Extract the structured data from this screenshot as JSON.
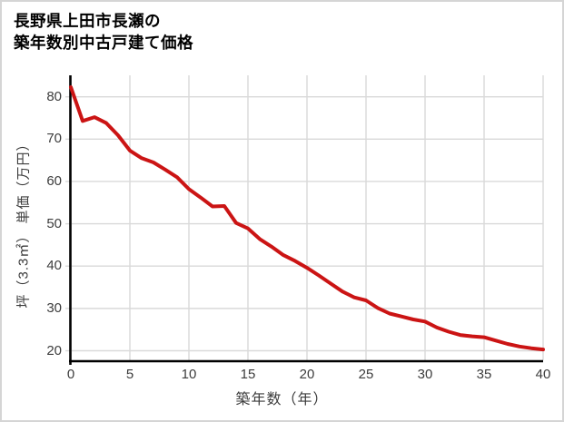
{
  "title": {
    "line1": "長野県上田市長瀬の",
    "line2": "築年数別中古戸建て価格"
  },
  "colors": {
    "line": "#cb1414",
    "grid": "#d9d9d9",
    "axis": "#000000",
    "text": "#3c3c3c",
    "border": "#d5d5d5",
    "background": "#ffffff"
  },
  "chart_data": {
    "type": "line",
    "title": "長野県上田市長瀬の 築年数別中古戸建て価格",
    "xlabel": "築年数（年）",
    "ylabel": "坪（3.3㎡） 単価（万円）",
    "x": [
      0,
      1,
      2,
      3,
      4,
      5,
      6,
      7,
      8,
      9,
      10,
      11,
      12,
      13,
      14,
      15,
      16,
      17,
      18,
      19,
      20,
      21,
      22,
      23,
      24,
      25,
      26,
      27,
      28,
      29,
      30,
      31,
      32,
      33,
      34,
      35,
      36,
      37,
      38,
      39,
      40
    ],
    "values": [
      82.3,
      74.3,
      75.2,
      73.8,
      70.9,
      67.3,
      65.5,
      64.5,
      62.8,
      61.0,
      58.2,
      56.2,
      54.1,
      54.2,
      50.2,
      48.9,
      46.4,
      44.6,
      42.6,
      41.2,
      39.6,
      37.8,
      35.9,
      34.0,
      32.6,
      31.9,
      30.1,
      28.8,
      28.1,
      27.4,
      26.9,
      25.5,
      24.5,
      23.7,
      23.4,
      23.2,
      22.4,
      21.6,
      21.0,
      20.6,
      20.3
    ],
    "xlim": [
      0,
      40
    ],
    "ylim": [
      17.5,
      85
    ],
    "xticks": [
      0,
      5,
      10,
      15,
      20,
      25,
      30,
      35,
      40
    ],
    "yticks": [
      20,
      30,
      40,
      50,
      60,
      70,
      80
    ],
    "grid": true,
    "legend": false
  }
}
